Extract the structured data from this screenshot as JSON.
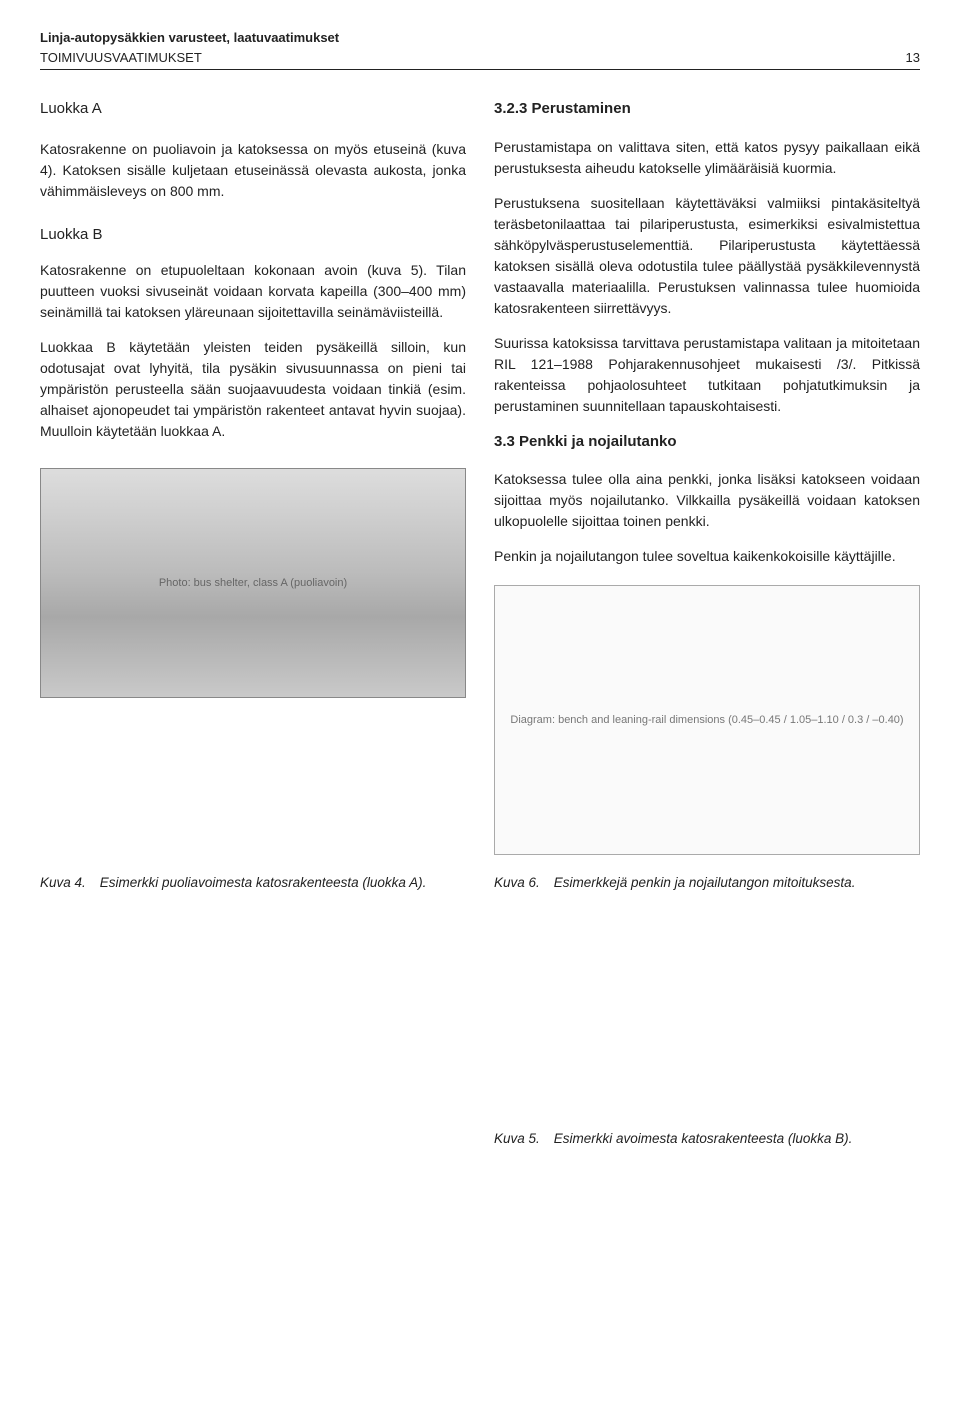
{
  "header": {
    "title": "Linja-autopysäkkien varusteet, laatuvaatimukset",
    "subtitle": "TOIMIVUUSVAATIMUKSET",
    "page_number": "13"
  },
  "left": {
    "heading_a": "Luokka A",
    "para_a1": "Katosrakenne on puoliavoin ja katoksessa on myös etuseinä (kuva 4). Katoksen sisälle kuljetaan etuseinässä olevasta aukosta, jonka vähimmäisleveys on 800 mm.",
    "heading_b": "Luokka B",
    "para_b1": "Katosrakenne on etupuoleltaan kokonaan avoin (kuva 5). Tilan puutteen vuoksi sivuseinät voidaan korvata kapeilla (300–400 mm) seinämillä tai katoksen yläreunaan sijoitettavilla seinämäviisteillä.",
    "para_b2": "Luokkaa B käytetään yleisten teiden pysäkeillä silloin, kun odotusajat ovat lyhyitä, tila pysäkin sivusuunnassa on pieni tai ympäristön perusteella sään suojaavuudesta voidaan tinkiä (esim. alhaiset ajonopeudet tai ympäristön rakenteet antavat hyvin suojaa). Muulloin käytetään luokkaa A.",
    "photo_alt": "Photo: bus shelter, class A (puoliavoin)"
  },
  "right": {
    "heading_323": "3.2.3 Perustaminen",
    "para_r1": "Perustamistapa on valittava siten, että katos pysyy paikallaan eikä perustuksesta aiheudu katokselle ylimääräisiä kuormia.",
    "para_r2": "Perustuksena suositellaan käytettäväksi valmiiksi pintakäsiteltyä teräsbetonilaattaa tai pilariperustusta, esimerkiksi esivalmistettua sähköpylväsperustuselementtiä. Pilariperustusta käytettäessä katoksen sisällä oleva odotustila tulee päällystää pysäkkilevennystä vastaavalla materiaalilla. Perustuksen valinnassa tulee huomioida katosrakenteen siirrettävyys.",
    "para_r3": "Suurissa katoksissa tarvittava perustamistapa valitaan ja mitoitetaan RIL 121–1988 Pohjarakennusohjeet mukaisesti /3/. Pitkissä rakenteissa pohjaolosuhteet tutkitaan pohjatutkimuksin ja perustaminen suunnitellaan tapauskohtaisesti.",
    "heading_33": "3.3   Penkki ja nojailutanko",
    "para_33a": "Katoksessa tulee olla aina penkki, jonka lisäksi katokseen voidaan sijoittaa myös nojailutanko. Vilkkailla pysäkeillä voidaan katoksen ulkopuolelle sijoittaa toinen penkki.",
    "para_33b": "Penkin ja nojailutangon tulee soveltua kaikenkokoisille käyttäjille.",
    "diagram_alt": "Diagram: bench and leaning-rail dimensions (0.45–0.45 / 1.05–1.10 / 0.3 / –0.40)"
  },
  "captions": {
    "kuva4_key": "Kuva 4.",
    "kuva4_txt": "Esimerkki puoliavoimesta katosrakenteesta (luokka A).",
    "kuva6_key": "Kuva 6.",
    "kuva6_txt": "Esimerkkejä penkin ja nojailutangon mitoituksesta.",
    "kuva5_key": "Kuva 5.",
    "kuva5_txt": "Esimerkki avoimesta katosrakenteesta (luokka B)."
  }
}
